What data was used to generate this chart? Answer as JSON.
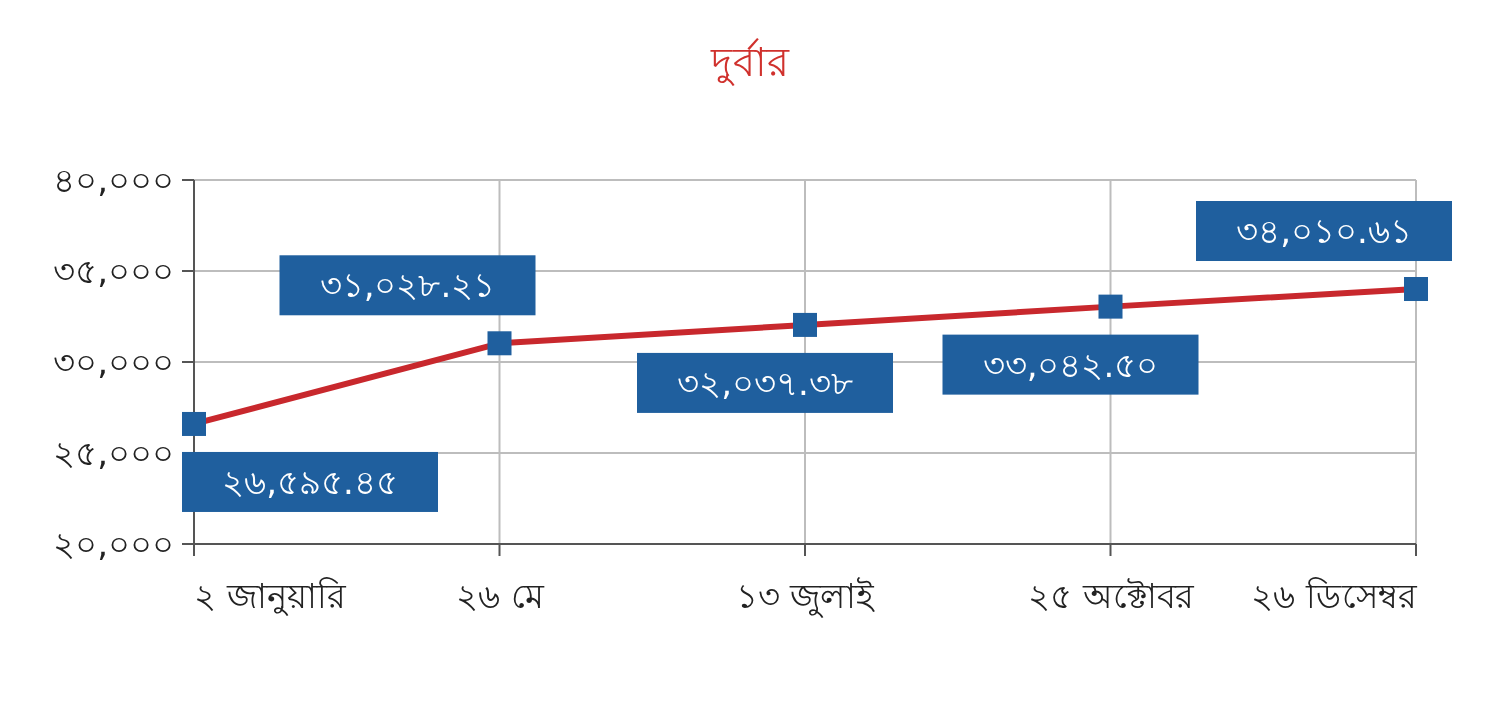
{
  "chart_data": {
    "type": "line",
    "title": "দুর্বার",
    "categories": [
      "২ জানুয়ারি",
      "২৬ মে",
      "১৩ জুলাই",
      "২৫ অক্টোবর",
      "২৬ ডিসেম্বর"
    ],
    "series": [
      {
        "color": "#c8282d",
        "values": [
          26595.45,
          31028.21,
          32037.38,
          33042.5,
          34010.61
        ],
        "value_labels": [
          "২৬,৫৯৫.৪৫",
          "৩১,০২৮.২১",
          "৩২,০৩৭.৩৮",
          "৩৩,০৪২.৫০",
          "৩৪,০১০.৬১"
        ]
      }
    ],
    "ylim": [
      20000,
      40000
    ],
    "yticks": [
      {
        "value": 20000,
        "label": "২০,০০০"
      },
      {
        "value": 25000,
        "label": "২৫,০০০"
      },
      {
        "value": 30000,
        "label": "৩০,০০০"
      },
      {
        "value": 35000,
        "label": "৩৫,০০০"
      },
      {
        "value": 40000,
        "label": "৪০,০০০"
      }
    ],
    "grid": true,
    "marker": "square",
    "line_style": "solid"
  }
}
